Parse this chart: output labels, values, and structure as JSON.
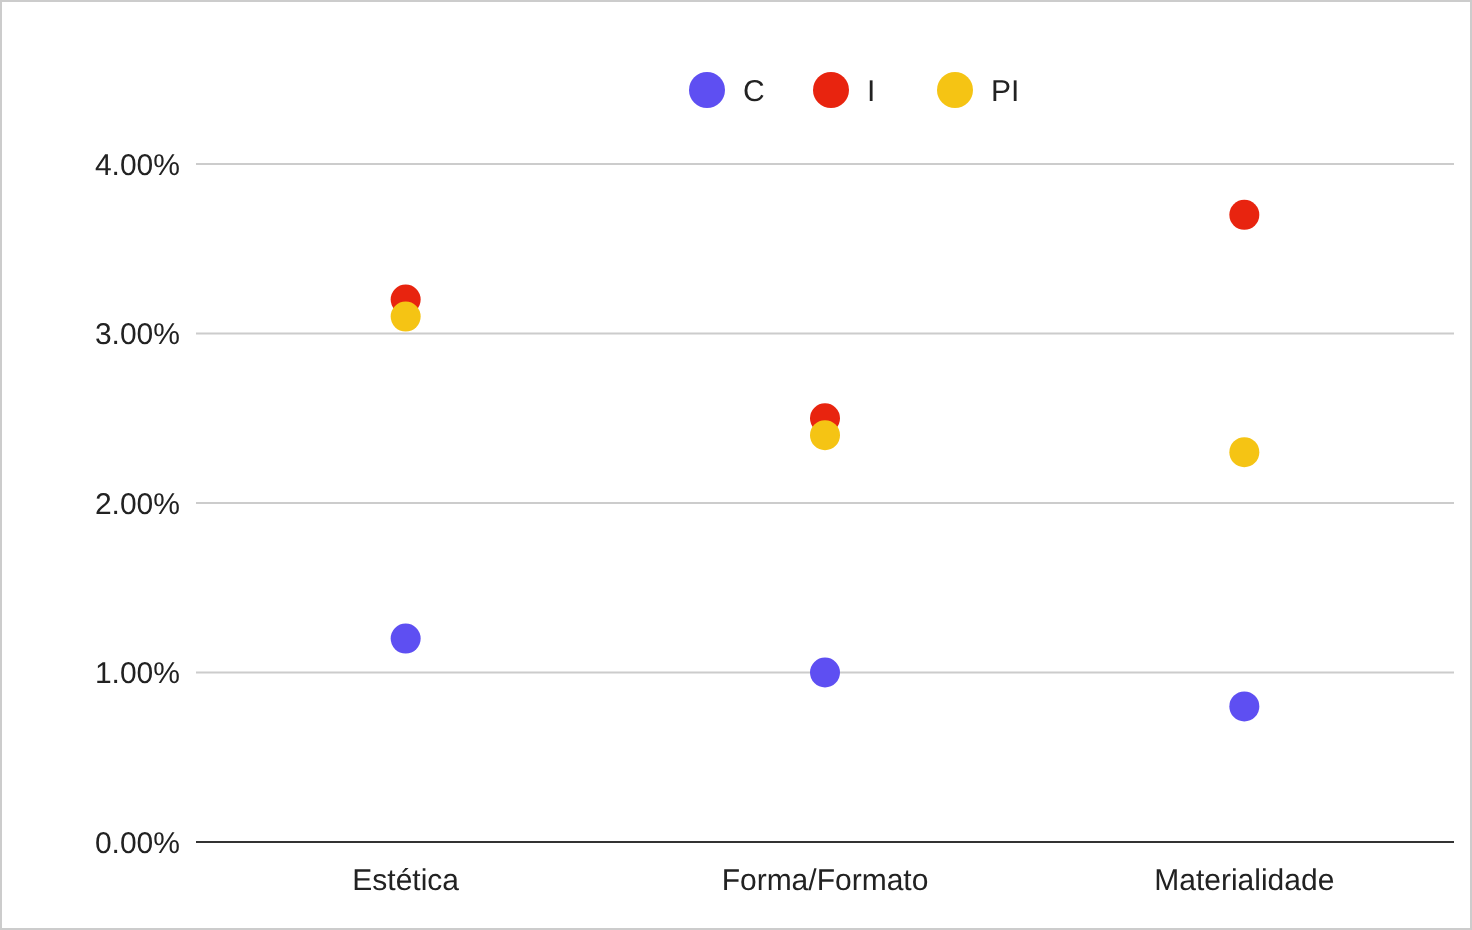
{
  "chart_data": {
    "type": "scatter",
    "categories": [
      "Estética",
      "Forma/Formato",
      "Materialidade"
    ],
    "series": [
      {
        "name": "C",
        "color": "#5e4ff2",
        "values": [
          1.2,
          1.0,
          0.8
        ]
      },
      {
        "name": "I",
        "color": "#e8240f",
        "values": [
          3.2,
          2.5,
          3.7
        ]
      },
      {
        "name": "PI",
        "color": "#f5c414",
        "values": [
          3.1,
          2.4,
          2.3
        ]
      }
    ],
    "ylim": [
      0,
      4
    ],
    "yticks": [
      {
        "value": 0,
        "label": "0.00%"
      },
      {
        "value": 1,
        "label": "1.00%"
      },
      {
        "value": 2,
        "label": "2.00%"
      },
      {
        "value": 3,
        "label": "3.00%"
      },
      {
        "value": 4,
        "label": "4.00%"
      }
    ],
    "grid": "y",
    "legend": "top",
    "marker": "circle"
  }
}
